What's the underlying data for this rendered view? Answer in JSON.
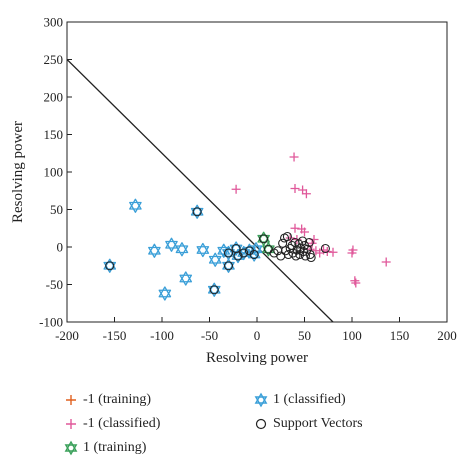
{
  "chart_data": {
    "type": "scatter",
    "xlabel": "Resolving power",
    "ylabel": "Resolving power",
    "xlim": [
      -200,
      200
    ],
    "ylim": [
      -100,
      300
    ],
    "xticks": [
      -200,
      -150,
      -100,
      -50,
      0,
      50,
      100,
      150,
      200
    ],
    "yticks": [
      -100,
      -50,
      0,
      50,
      100,
      150,
      200,
      250,
      300
    ],
    "grid": false,
    "legend_position": "bottom",
    "decision_boundary": [
      [
        -200,
        250
      ],
      [
        80,
        -100
      ]
    ],
    "series": [
      {
        "name": "-1 (training)",
        "marker": "plus",
        "color": "#e0601f",
        "points": []
      },
      {
        "name": "-1 (classified)",
        "marker": "plus",
        "color": "#e0589a",
        "points": [
          [
            -22,
            77
          ],
          [
            39,
            120
          ],
          [
            40,
            78
          ],
          [
            48,
            76
          ],
          [
            52,
            71
          ],
          [
            40,
            25
          ],
          [
            47,
            24
          ],
          [
            50,
            20
          ],
          [
            58,
            5
          ],
          [
            56,
            -3
          ],
          [
            62,
            -5
          ],
          [
            66,
            -8
          ],
          [
            70,
            -4
          ],
          [
            74,
            -6
          ],
          [
            80,
            -7
          ],
          [
            42,
            10
          ],
          [
            35,
            12
          ],
          [
            60,
            10
          ],
          [
            100,
            -8
          ],
          [
            101,
            -4
          ],
          [
            103,
            -45
          ],
          [
            104,
            -48
          ],
          [
            136,
            -20
          ]
        ]
      },
      {
        "name": "1 (training)",
        "marker": "hexagram",
        "color": "#3aa05a",
        "points": [
          [
            7,
            11
          ],
          [
            12,
            -3
          ]
        ]
      },
      {
        "name": "1 (classified)",
        "marker": "hexagram",
        "color": "#3a9fd8",
        "points": [
          [
            -155,
            -25
          ],
          [
            -128,
            55
          ],
          [
            -108,
            -5
          ],
          [
            -97,
            -62
          ],
          [
            -90,
            3
          ],
          [
            -79,
            -3
          ],
          [
            -75,
            -42
          ],
          [
            -63,
            47
          ],
          [
            -57,
            -4
          ],
          [
            -45,
            -57
          ],
          [
            -44,
            -17
          ],
          [
            -30,
            -25
          ],
          [
            -30,
            -8
          ],
          [
            -22,
            -2
          ],
          [
            -20,
            -12
          ],
          [
            -14,
            -8
          ],
          [
            -8,
            -5
          ],
          [
            -3,
            -10
          ],
          [
            -1,
            -3
          ],
          [
            -35,
            -5
          ]
        ]
      },
      {
        "name": "Support Vectors",
        "marker": "circle",
        "color": "#222222",
        "points": [
          [
            -155,
            -25
          ],
          [
            -63,
            47
          ],
          [
            -45,
            -57
          ],
          [
            -30,
            -25
          ],
          [
            -30,
            -8
          ],
          [
            -22,
            -2
          ],
          [
            -20,
            -12
          ],
          [
            -14,
            -8
          ],
          [
            -8,
            -5
          ],
          [
            -3,
            -10
          ],
          [
            7,
            11
          ],
          [
            12,
            -3
          ],
          [
            18,
            -8
          ],
          [
            22,
            -5
          ],
          [
            25,
            -12
          ],
          [
            27,
            5
          ],
          [
            29,
            12
          ],
          [
            30,
            -5
          ],
          [
            32,
            14
          ],
          [
            33,
            -10
          ],
          [
            35,
            -2
          ],
          [
            37,
            2
          ],
          [
            38,
            -8
          ],
          [
            40,
            6
          ],
          [
            41,
            -12
          ],
          [
            42,
            -4
          ],
          [
            44,
            4
          ],
          [
            45,
            -10
          ],
          [
            46,
            -2
          ],
          [
            48,
            8
          ],
          [
            49,
            -6
          ],
          [
            50,
            2
          ],
          [
            51,
            -12
          ],
          [
            53,
            -3
          ],
          [
            55,
            6
          ],
          [
            56,
            -10
          ],
          [
            57,
            -14
          ],
          [
            72,
            -2
          ]
        ]
      }
    ]
  },
  "legend": {
    "items": [
      {
        "label": "-1 (training)",
        "marker": "plus",
        "color": "#e0601f"
      },
      {
        "label": "1 (classified)",
        "marker": "hexagram",
        "color": "#3a9fd8"
      },
      {
        "label": "-1 (classified)",
        "marker": "plus",
        "color": "#e0589a"
      },
      {
        "label": "Support Vectors",
        "marker": "circle",
        "color": "#222222"
      },
      {
        "label": "1 (training)",
        "marker": "hexagram",
        "color": "#3aa05a"
      }
    ]
  }
}
